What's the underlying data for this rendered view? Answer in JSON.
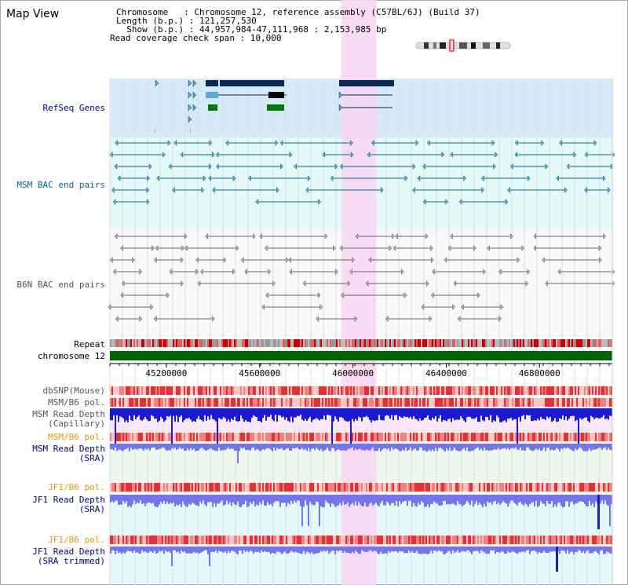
{
  "app": {
    "title": "Map View"
  },
  "info": {
    "chromosome": "Chromosome   : Chromosome 12, reference assembly (C57BL/6J) (Build 37)",
    "length": "Length (b.p.) : 121,257,530",
    "show": "  Show (b.p.) : 44,957,984-47,111,968 : 2,153,985 bp",
    "span": "Read coverage check span : 10,000"
  },
  "tracks": {
    "refseq": "RefSeq Genes",
    "msm_bac": "MSM BAC end pairs",
    "b6n_bac": "B6N BAC end pairs",
    "repeat": "Repeat",
    "chromosome": "chromosome 12",
    "dbsnp": "dbSNP(Mouse)",
    "msm_b6_pol": "MSM/B6 pol.",
    "msm_read_depth_cap_1": "MSM Read Depth",
    "msm_read_depth_cap_2": "(Capillary)",
    "msm_b6_pol_2": "MSM/B6 pol.",
    "msm_read_depth_sra_1": "MSM Read Depth",
    "msm_read_depth_sra_2": "(SRA)",
    "jf1_b6_pol": "JF1/B6 pol.",
    "jf1_read_depth_1": "JF1 Read Depth",
    "jf1_read_depth_2": "(SRA)",
    "jf1_b6_pol_2": "JF1/B6 pol.",
    "jf1_trim_1": "JF1 Read Depth",
    "jf1_trim_2": "(SRA trimmed)"
  },
  "axis": {
    "ticks": [
      "45200000",
      "45600000",
      "46000000",
      "46400000",
      "46800000"
    ],
    "tick_values": [
      45200000,
      45600000,
      46000000,
      46400000,
      46800000
    ],
    "range": [
      44957984,
      47111968
    ]
  },
  "highlight": {
    "start": 45950000,
    "end": 46100000
  },
  "colors": {
    "refseq_bg": "#d5ecf8",
    "msm_bg": "#e5f9fb",
    "b6n_bg": "#f8f9fb",
    "highlight": "#f8d6f2",
    "refseq_label": "#00008b",
    "msm_label": "#006b8a",
    "b6n_label": "#555555",
    "chromosome_bar": "#006400",
    "depth_blue": "#1a1ad6",
    "sra_blue": "#7474f0",
    "pol_orange": "#e69a00"
  }
}
